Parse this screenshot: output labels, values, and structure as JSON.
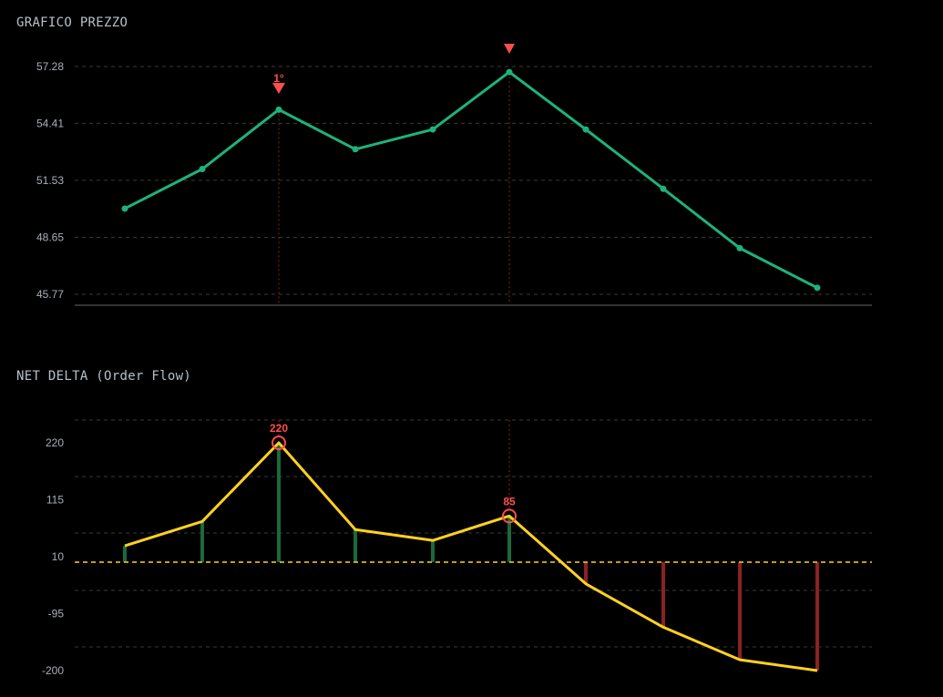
{
  "price_panel": {
    "title": "GRAFICO PREZZO"
  },
  "delta_panel": {
    "title": "NET DELTA (Order Flow)"
  },
  "colors": {
    "background": "#000000",
    "price_line": "#1db37a",
    "delta_line": "#ffd21f",
    "bar_positive": "#1a6a3a",
    "bar_negative": "#8a2222",
    "marker": "#ff4d4d",
    "grid": "#3a3a3a",
    "zero_line": "#ffd21f"
  },
  "chart_data": [
    {
      "type": "line",
      "title": "GRAFICO PREZZO",
      "x": [
        1,
        2,
        3,
        4,
        5,
        6,
        7,
        8,
        9,
        10
      ],
      "series": [
        {
          "values": [
            50.1,
            52.1,
            55.1,
            53.1,
            54.1,
            57.0,
            54.1,
            51.1,
            48.1,
            46.1
          ]
        }
      ],
      "ylim": [
        45.2,
        57.5
      ],
      "yticks": [
        "57.28",
        "54.41",
        "51.53",
        "48.65",
        "45.77"
      ],
      "ytick_values": [
        57.28,
        54.41,
        51.53,
        48.65,
        45.77
      ],
      "grid": true,
      "markers": [
        {
          "x": 3,
          "label": "1°"
        },
        {
          "x": 6,
          "label": ""
        }
      ]
    },
    {
      "type": "bar",
      "title": "NET DELTA (Order Flow)",
      "x": [
        1,
        2,
        3,
        4,
        5,
        6,
        7,
        8,
        9,
        10
      ],
      "series": [
        {
          "values": [
            30,
            75,
            220,
            60,
            40,
            85,
            -40,
            -120,
            -180,
            -200
          ]
        }
      ],
      "ylim": [
        -210,
        300
      ],
      "yticks": [
        "220",
        "115",
        "10",
        "-95",
        "-200"
      ],
      "ytick_values": [
        220,
        115,
        10,
        -95,
        -200
      ],
      "grid": true,
      "zero_line": 0,
      "highlights": [
        {
          "x": 3,
          "label": "220"
        },
        {
          "x": 6,
          "label": "85"
        }
      ]
    }
  ]
}
